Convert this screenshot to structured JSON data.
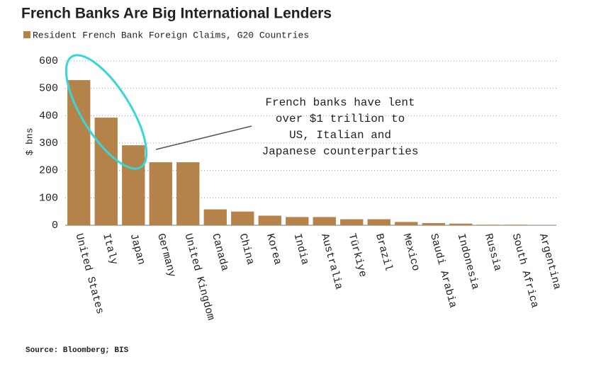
{
  "chart_data": {
    "type": "bar",
    "title": "French Banks Are Big International Lenders",
    "y_label": "$ bns",
    "categories": [
      "United States",
      "Italy",
      "Japan",
      "Germany",
      "United Kingdom",
      "Canada",
      "China",
      "Korea",
      "India",
      "Australia",
      "Türkiye",
      "Brazil",
      "Mexico",
      "Saudi Arabia",
      "Indonesia",
      "Russia",
      "South Africa",
      "Argentina"
    ],
    "series": [
      {
        "name": "Resident French Bank Foreign Claims, G20 Countries",
        "color": "#b5834a",
        "values": [
          530,
          393,
          292,
          230,
          230,
          58,
          50,
          35,
          30,
          30,
          22,
          22,
          12,
          8,
          6,
          2,
          2,
          1
        ]
      }
    ],
    "ylim": [
      0,
      600
    ],
    "yticks": [
      0,
      100,
      200,
      300,
      400,
      500,
      600
    ],
    "grid": true,
    "annotation": [
      "French banks have lent",
      "over $1 trillion to",
      "US, Italian and",
      "Japanese counterparties"
    ],
    "source": "Source: Bloomberg; BIS"
  }
}
